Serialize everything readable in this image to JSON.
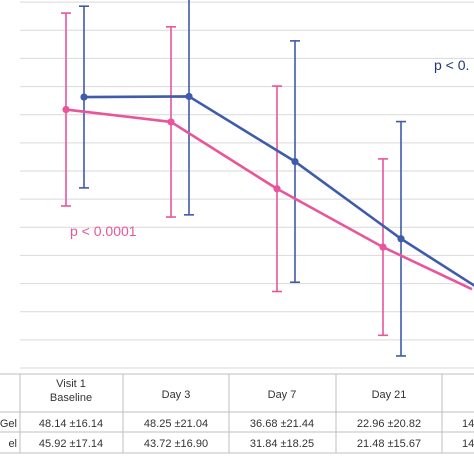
{
  "chart_data": {
    "type": "line",
    "categories": [
      "Visit 1\nBaseline",
      "Day 3",
      "Day 7",
      "Day 21",
      ""
    ],
    "series": [
      {
        "row_label": "Gel",
        "color": "#3F5BA9",
        "values": [
          48.14,
          48.25,
          36.68,
          22.96,
          14
        ],
        "error": [
          16.14,
          21.04,
          21.44,
          20.82,
          null
        ],
        "table_text": [
          "48.14 ±16.14",
          "48.25 ±21.04",
          "36.68 ±21.44",
          "22.96 ±20.82",
          "14"
        ]
      },
      {
        "row_label": "el",
        "color": "#E8559A",
        "values": [
          45.92,
          43.72,
          31.84,
          21.48,
          14
        ],
        "error": [
          17.14,
          16.9,
          18.25,
          15.67,
          null
        ],
        "table_text": [
          "45.92 ±17.14",
          "43.72 ±16.90",
          "31.84 ±18.25",
          "21.48 ±15.67",
          "14"
        ]
      }
    ],
    "annotations": [
      {
        "text": "p < 0.",
        "color": "#1F3A73",
        "series": 0
      },
      {
        "text": "p < 0.0001",
        "color": "#E8559A",
        "series": 1
      }
    ],
    "ylim": [
      0,
      70
    ],
    "grid": true,
    "xlabel": "",
    "ylabel": "",
    "title": ""
  }
}
